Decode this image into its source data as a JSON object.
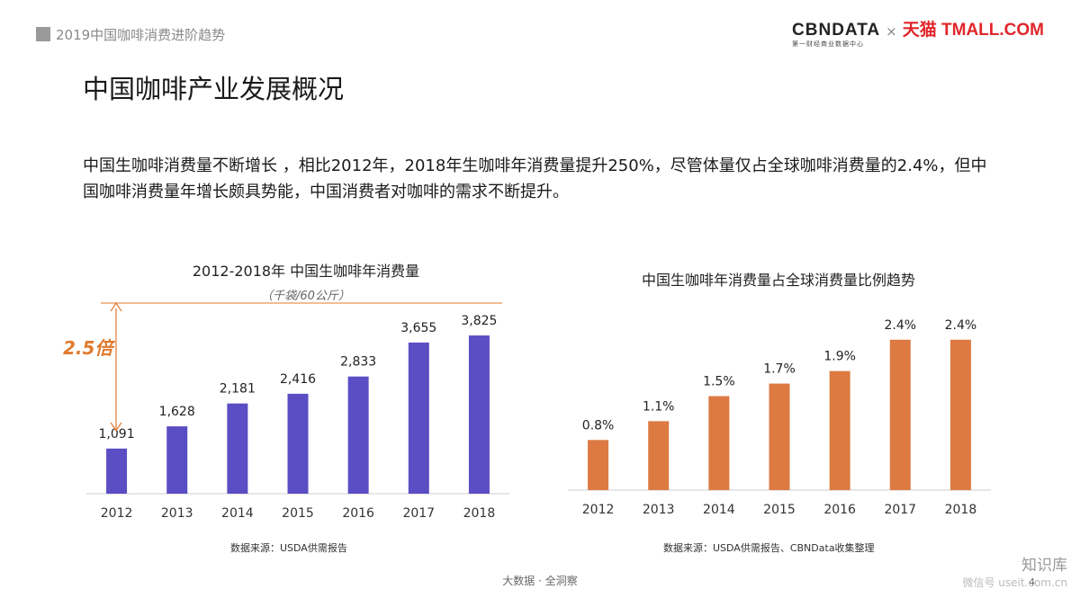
{
  "header": {
    "section": "2019中国咖啡消费进阶趋势",
    "logo_cbn": "CBNDATA",
    "logo_cbn_sub": "第一财经商业数据中心",
    "logo_times": "×",
    "logo_tmall": "天猫 TMALL.COM"
  },
  "page": {
    "title": "中国咖啡产业发展概况",
    "description": "中国生咖啡消费量不断增长 ，相比2012年，2018年生咖啡年消费量提升250%，尽管体量仅占全球咖啡消费量的2.4%，但中国咖啡消费量年增长颇具势能，中国消费者对咖啡的需求不断提升。"
  },
  "chart_data": [
    {
      "type": "bar",
      "title": "2012-2018年 中国生咖啡年消费量",
      "unit": "（千袋/60公斤）",
      "categories": [
        "2012",
        "2013",
        "2014",
        "2015",
        "2016",
        "2017",
        "2018"
      ],
      "values": [
        1091,
        1628,
        2181,
        2416,
        2833,
        3655,
        3825
      ],
      "value_labels": [
        "1,091",
        "1,628",
        "2,181",
        "2,416",
        "2,833",
        "3,655",
        "3,825"
      ],
      "ylim": [
        0,
        4500
      ],
      "annotation": "2.5倍",
      "color": "#5b4ec4",
      "annotation_color": "#e07a2f",
      "source": "数据来源：USDA供需报告"
    },
    {
      "type": "bar",
      "title": "中国生咖啡年消费量占全球消费量比例趋势",
      "categories": [
        "2012",
        "2013",
        "2014",
        "2015",
        "2016",
        "2017",
        "2018"
      ],
      "values": [
        0.8,
        1.1,
        1.5,
        1.7,
        1.9,
        2.4,
        2.4
      ],
      "value_labels": [
        "0.8%",
        "1.1%",
        "1.5%",
        "1.7%",
        "1.9%",
        "2.4%",
        "2.4%"
      ],
      "ylim": [
        0,
        2.77
      ],
      "color": "#dc7a42",
      "source": "数据来源：USDA供需报告、CBNData收集整理"
    }
  ],
  "footer": {
    "text": "大数据 · 全洞察",
    "page_number": "4"
  },
  "watermark": {
    "top": "知识库",
    "bottom": "微信号 useit.com.cn"
  }
}
